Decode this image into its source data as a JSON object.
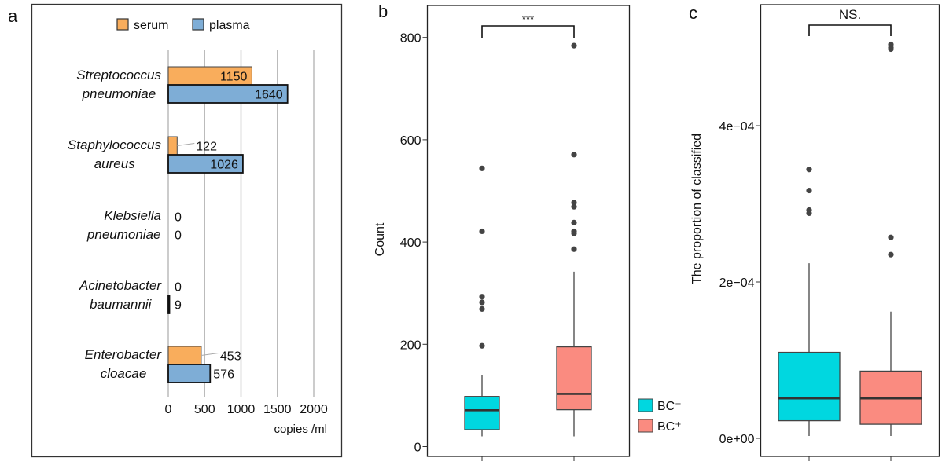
{
  "chart_data": [
    {
      "panel_label": "a",
      "type": "bar",
      "orientation": "horizontal",
      "categories": [
        [
          "Streptococcus",
          "pneumoniae"
        ],
        [
          "Staphylococcus",
          "aureus"
        ],
        [
          "Klebsiella",
          "pneumoniae"
        ],
        [
          "Acinetobacter",
          "baumannii"
        ],
        [
          "Enterobacter",
          "cloacae"
        ]
      ],
      "series": [
        {
          "name": "serum",
          "values": [
            1150,
            122,
            0,
            0,
            453
          ],
          "color": "#F9AD5C"
        },
        {
          "name": "plasma",
          "values": [
            1640,
            1026,
            0,
            9,
            576
          ],
          "color": "#7EADD6"
        }
      ],
      "xlabel": "copies /ml",
      "xlim": [
        0,
        2000
      ],
      "xticks": [
        "0",
        "500",
        "1000",
        "1500",
        "2000"
      ],
      "grid": "vertical",
      "legend": "top"
    },
    {
      "panel_label": "b",
      "type": "box",
      "ylabel": "Count",
      "ylim": [
        0,
        800
      ],
      "yticks": [
        "0",
        "200",
        "400",
        "600",
        "800"
      ],
      "significance": "***",
      "groups": [
        {
          "name": "BC⁻",
          "color": "#00D7E0",
          "whisker_low": 20,
          "q1": 33,
          "median": 71,
          "q3": 98,
          "whisker_high": 139,
          "outliers": [
            197,
            269,
            282,
            293,
            421,
            544
          ]
        },
        {
          "name": "BC⁺",
          "color": "#FA8B80",
          "whisker_low": 20,
          "q1": 72,
          "median": 103,
          "q3": 195,
          "whisker_high": 342,
          "outliers": [
            386,
            417,
            421,
            438,
            469,
            477,
            571,
            784
          ]
        }
      ],
      "legend": "right"
    },
    {
      "panel_label": "c",
      "type": "box",
      "ylabel": "The proportion of classified",
      "ylim": [
        0,
        0.0005
      ],
      "yticks": [
        "0e+00",
        "2e−04",
        "4e−04"
      ],
      "significance": "NS.",
      "groups": [
        {
          "name": "BC⁻",
          "color": "#00D7E0",
          "whisker_low": 3e-06,
          "q1": 2.25e-05,
          "median": 5.1e-05,
          "q3": 0.00011,
          "whisker_high": 0.000224,
          "outliers": [
            0.000288,
            0.000292,
            0.000317,
            0.000344
          ]
        },
        {
          "name": "BC⁺",
          "color": "#FA8B80",
          "whisker_low": 3e-06,
          "q1": 1.8e-05,
          "median": 5.1e-05,
          "q3": 8.6e-05,
          "whisker_high": 0.000162,
          "outliers": [
            0.000235,
            0.000257,
            0.000498,
            0.0005,
            0.000504
          ]
        }
      ]
    }
  ]
}
